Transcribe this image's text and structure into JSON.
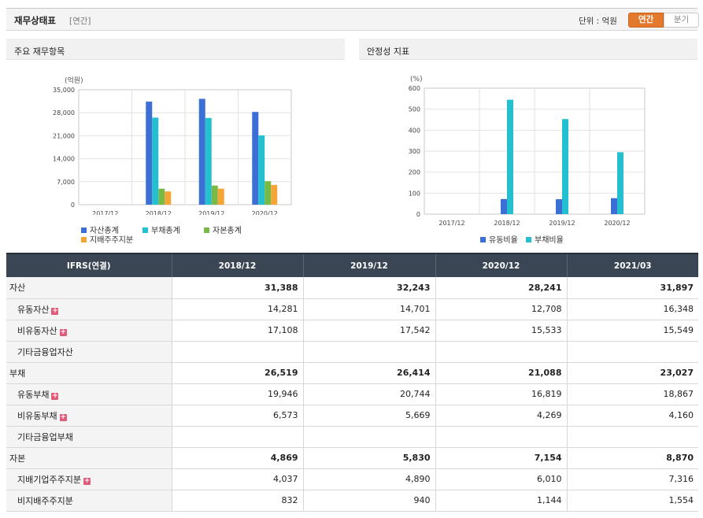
{
  "header": {
    "title": "재무상태표",
    "period_tag": "[연간]",
    "unit_label": "단위 : 억원",
    "toggle_annual": "연간",
    "toggle_quarter": "분기"
  },
  "panels": {
    "left_title": "주요 재무항목",
    "right_title": "안정성 지표"
  },
  "colors": {
    "blue": "#3b6fd6",
    "cyan": "#25c0cf",
    "green": "#79b946",
    "orange": "#f5a534",
    "accent": "#e3792c",
    "table_header": "#3a4654"
  },
  "chart_data": [
    {
      "type": "bar",
      "unit": "(억원)",
      "categories": [
        "2017/12",
        "2018/12",
        "2019/12",
        "2020/12"
      ],
      "ylim": [
        0,
        35000
      ],
      "yticks": [
        "0",
        "7,000",
        "14,000",
        "21,000",
        "28,000",
        "35,000"
      ],
      "ytick_values": [
        0,
        7000,
        14000,
        21000,
        28000,
        35000
      ],
      "series": [
        {
          "name": "자산총계",
          "color": "#3b6fd6",
          "values": [
            null,
            31388,
            32243,
            28241
          ]
        },
        {
          "name": "부채총계",
          "color": "#25c0cf",
          "values": [
            null,
            26519,
            26414,
            21088
          ]
        },
        {
          "name": "자본총계",
          "color": "#79b946",
          "values": [
            null,
            4869,
            5830,
            7154
          ]
        },
        {
          "name": "지배주주지분",
          "color": "#f5a534",
          "values": [
            null,
            4037,
            4890,
            6010
          ]
        }
      ],
      "grid": true,
      "legend": "bottom"
    },
    {
      "type": "bar",
      "unit": "(%)",
      "categories": [
        "2017/12",
        "2018/12",
        "2019/12",
        "2020/12"
      ],
      "ylim": [
        0,
        600
      ],
      "yticks": [
        "0",
        "100",
        "200",
        "300",
        "400",
        "500",
        "600"
      ],
      "ytick_values": [
        0,
        100,
        200,
        300,
        400,
        500,
        600
      ],
      "series": [
        {
          "name": "유동비율",
          "color": "#3b6fd6",
          "values": [
            null,
            72,
            71,
            76
          ]
        },
        {
          "name": "부채비율",
          "color": "#25c0cf",
          "values": [
            null,
            545,
            453,
            295
          ]
        }
      ],
      "grid": true,
      "legend": "bottom"
    }
  ],
  "table": {
    "header_label": "IFRS(연결)",
    "columns": [
      "2018/12",
      "2019/12",
      "2020/12",
      "2021/03"
    ],
    "rows": [
      {
        "label": "자산",
        "major": true,
        "expand": false,
        "values": [
          "31,388",
          "32,243",
          "28,241",
          "31,897"
        ]
      },
      {
        "label": "유동자산",
        "major": false,
        "expand": true,
        "values": [
          "14,281",
          "14,701",
          "12,708",
          "16,348"
        ]
      },
      {
        "label": "비유동자산",
        "major": false,
        "expand": true,
        "values": [
          "17,108",
          "17,542",
          "15,533",
          "15,549"
        ]
      },
      {
        "label": "기타금융업자산",
        "major": false,
        "expand": false,
        "values": [
          "",
          "",
          "",
          ""
        ]
      },
      {
        "label": "부채",
        "major": true,
        "expand": false,
        "values": [
          "26,519",
          "26,414",
          "21,088",
          "23,027"
        ]
      },
      {
        "label": "유동부채",
        "major": false,
        "expand": true,
        "values": [
          "19,946",
          "20,744",
          "16,819",
          "18,867"
        ]
      },
      {
        "label": "비유동부채",
        "major": false,
        "expand": true,
        "values": [
          "6,573",
          "5,669",
          "4,269",
          "4,160"
        ]
      },
      {
        "label": "기타금융업부채",
        "major": false,
        "expand": false,
        "values": [
          "",
          "",
          "",
          ""
        ]
      },
      {
        "label": "자본",
        "major": true,
        "expand": false,
        "values": [
          "4,869",
          "5,830",
          "7,154",
          "8,870"
        ]
      },
      {
        "label": "지배기업주주지분",
        "major": false,
        "expand": true,
        "values": [
          "4,037",
          "4,890",
          "6,010",
          "7,316"
        ]
      },
      {
        "label": "비지배주주지분",
        "major": false,
        "expand": false,
        "values": [
          "832",
          "940",
          "1,144",
          "1,554"
        ]
      }
    ]
  }
}
